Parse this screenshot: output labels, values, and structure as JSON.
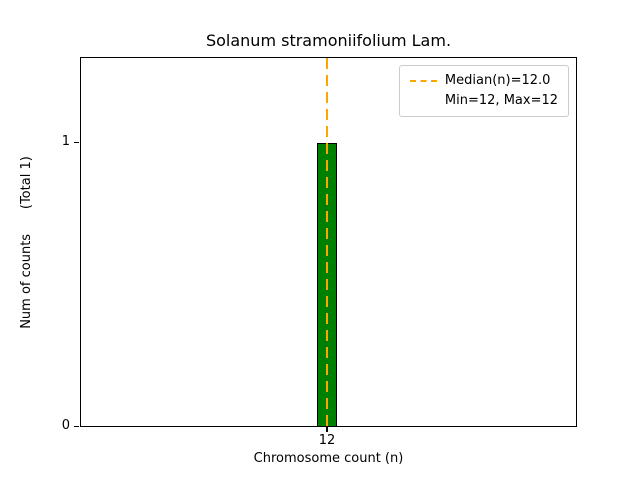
{
  "chart_data": {
    "type": "bar",
    "title": "Solanum stramoniifolium Lam.",
    "xlabel": "Chromosome count (n)",
    "ylabel": "Num of counts      (Total 1)",
    "categories": [
      "12"
    ],
    "values": [
      1
    ],
    "ylim": [
      0,
      1.3
    ],
    "yticks": [
      "0",
      "1"
    ],
    "xticks": [
      "12"
    ],
    "grid": "off",
    "bar_color": "#008000",
    "bar_edge_color": "#000000",
    "median_line": {
      "value": 12,
      "color": "#ffa500",
      "style": "dashed"
    },
    "legend": {
      "position": "upper right",
      "entries": [
        "Median(n)=12.0",
        "Min=12, Max=12"
      ]
    }
  }
}
